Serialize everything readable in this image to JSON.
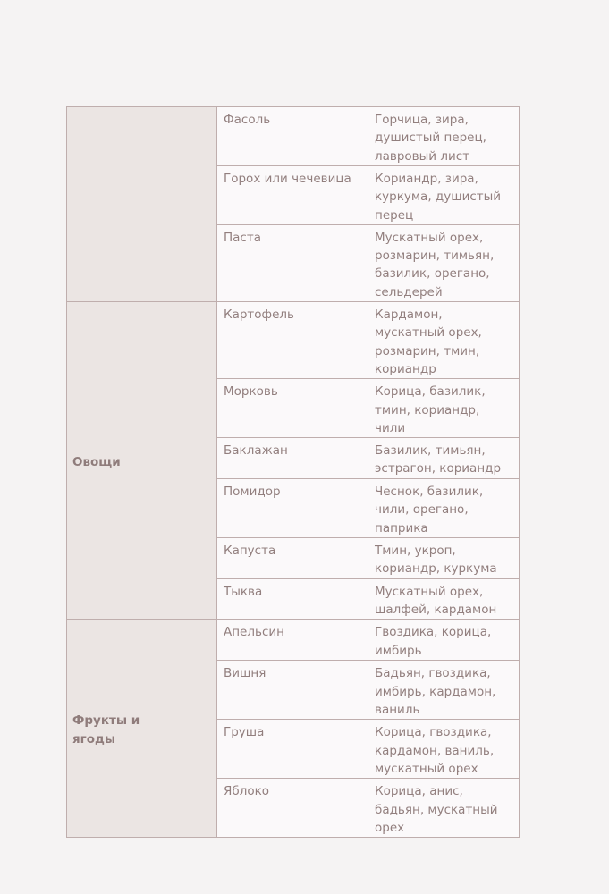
{
  "groups": [
    {
      "label": "",
      "rows": [
        {
          "item": "Фасоль",
          "spices": "Горчица, зира, душистый перец, лавровый лист"
        },
        {
          "item": "Горох или чечевица",
          "spices": "Кориандр, зира, куркума, душистый перец"
        },
        {
          "item": "Паста",
          "spices": "Мускатный орех, розмарин, тимьян, базилик, орегано, сельдерей"
        }
      ]
    },
    {
      "label": "Овощи",
      "rows": [
        {
          "item": "Картофель",
          "spices": "Кардамон, мускатный орех, розмарин, тмин, кориандр"
        },
        {
          "item": "Морковь",
          "spices": "Корица, базилик, тмин, кориандр, чили"
        },
        {
          "item": "Баклажан",
          "spices": "Базилик, тимьян, эстрагон, кориандр"
        },
        {
          "item": "Помидор",
          "spices": "Чеснок, базилик, чили, орегано, паприка"
        },
        {
          "item": "Капуста",
          "spices": "Тмин, укроп, кориандр, куркума"
        },
        {
          "item": "Тыква",
          "spices": "Мускатный орех, шалфей, кардамон"
        }
      ]
    },
    {
      "label": "Фрукты и ягоды",
      "rows": [
        {
          "item": "Апельсин",
          "spices": "Гвоздика, корица, имбирь"
        },
        {
          "item": "Вишня",
          "spices": "Бадьян, гвоздика, имбирь, кардамон, ваниль"
        },
        {
          "item": "Груша",
          "spices": "Корица, гвоздика, кардамон, ваниль, мускатный орех"
        },
        {
          "item": "Яблоко",
          "spices": "Корица, анис, бадьян, мускатный орех"
        }
      ]
    }
  ]
}
